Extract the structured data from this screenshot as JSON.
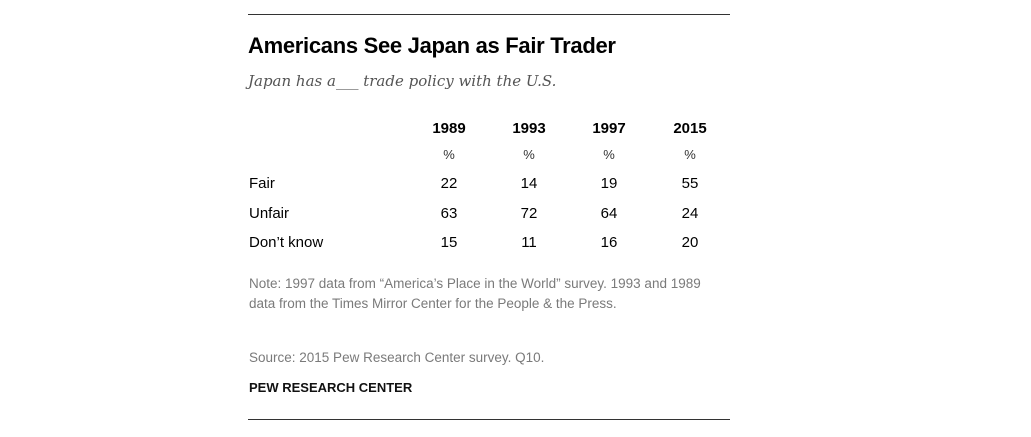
{
  "chart_data": {
    "type": "table",
    "title": "Americans See Japan as Fair Trader",
    "subtitle": "Japan has a___ trade policy with the U.S.",
    "columns": [
      "1989",
      "1993",
      "1997",
      "2015"
    ],
    "unit_label": "%",
    "rows": [
      {
        "label": "Fair",
        "values": [
          22,
          14,
          19,
          55
        ]
      },
      {
        "label": "Unfair",
        "values": [
          63,
          72,
          64,
          24
        ]
      },
      {
        "label": "Don’t know",
        "values": [
          15,
          11,
          16,
          20
        ]
      }
    ],
    "note": "Note: 1997 data from “America’s Place in the World” survey. 1993 and 1989 data from the Times Mirror Center for the People & the Press.",
    "source": "Source: 2015 Pew Research Center survey. Q10.",
    "credit": "PEW RESEARCH CENTER"
  }
}
